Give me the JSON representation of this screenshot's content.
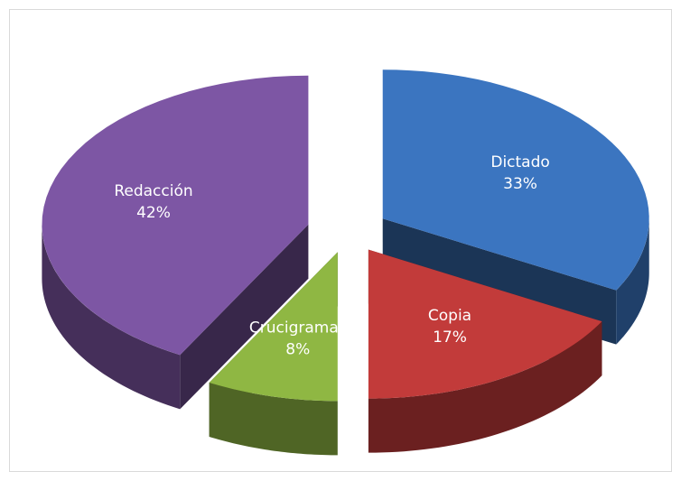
{
  "chart_data": {
    "type": "pie",
    "categories": [
      "Dictado",
      "Copia",
      "Crucigramas",
      "Redacción"
    ],
    "values": [
      33,
      17,
      8,
      42
    ],
    "value_labels": [
      "33%",
      "17%",
      "8%",
      "42%"
    ],
    "colors": [
      "#3b75c0",
      "#c23b3a",
      "#8fb743",
      "#7d56a4"
    ]
  }
}
